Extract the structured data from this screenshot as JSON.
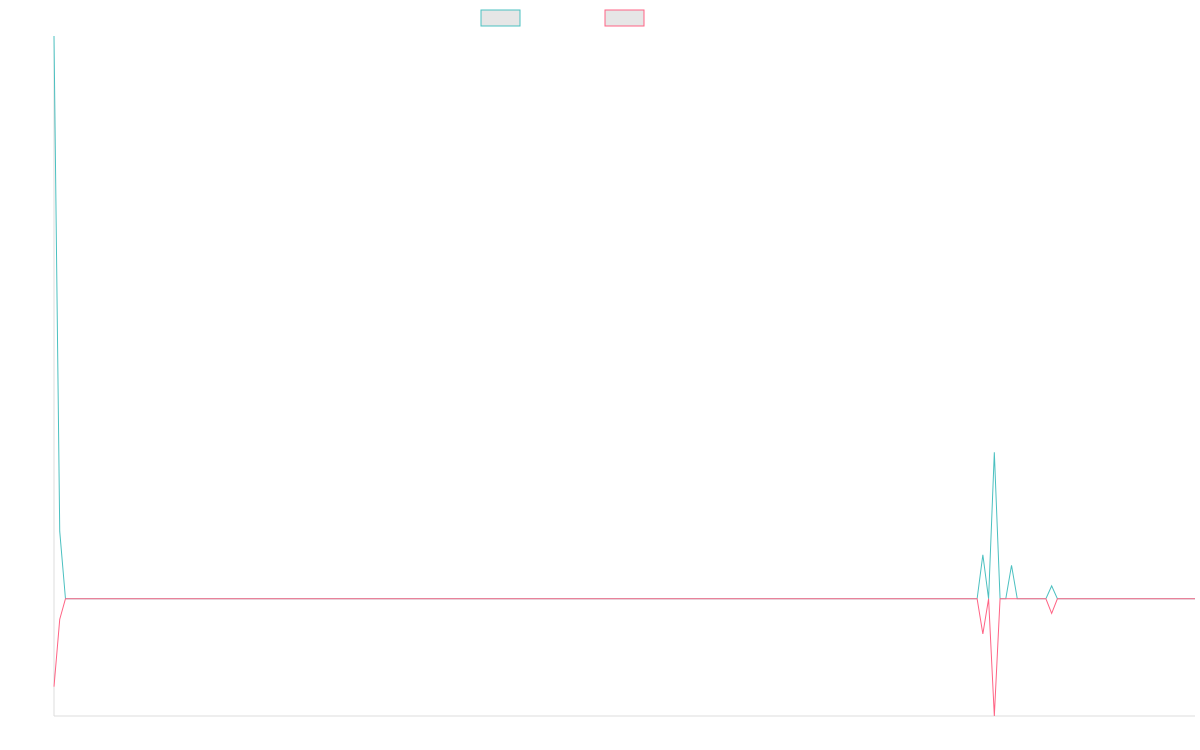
{
  "chart_data": {
    "type": "line",
    "title": "",
    "xlabel": "",
    "ylabel": "",
    "x_count": 200,
    "ylim": [
      -20,
      96
    ],
    "grid": false,
    "legend": "top-center",
    "series": [
      {
        "color": "#4bc0c0",
        "points": [
          [
            0,
            96
          ],
          [
            1,
            11.5
          ],
          [
            2,
            0
          ],
          [
            100,
            0
          ],
          [
            161,
            0
          ],
          [
            162,
            7.5
          ],
          [
            163,
            0
          ],
          [
            164,
            25
          ],
          [
            165,
            0
          ],
          [
            166,
            0
          ],
          [
            167,
            5.7
          ],
          [
            168,
            0
          ],
          [
            173,
            0
          ],
          [
            174,
            2.2
          ],
          [
            175,
            0
          ],
          [
            199,
            0
          ]
        ]
      },
      {
        "color": "#ff6384",
        "points": [
          [
            0,
            -15
          ],
          [
            1,
            -3.5
          ],
          [
            2,
            0
          ],
          [
            100,
            0
          ],
          [
            161,
            0
          ],
          [
            162,
            -6
          ],
          [
            163,
            0
          ],
          [
            164,
            -20
          ],
          [
            165,
            0
          ],
          [
            166,
            0
          ],
          [
            173,
            0
          ],
          [
            174,
            -2.5
          ],
          [
            175,
            0
          ],
          [
            199,
            0
          ]
        ]
      }
    ]
  }
}
